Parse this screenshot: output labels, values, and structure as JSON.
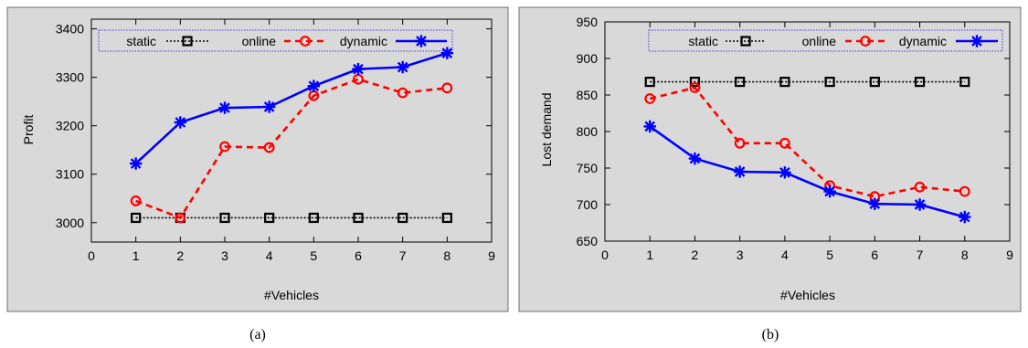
{
  "chart_data": [
    {
      "type": "line",
      "caption": "(a)",
      "xlabel": "#Vehicles",
      "ylabel": "Profit",
      "xlim": [
        0,
        9
      ],
      "ylim": [
        2960,
        3420
      ],
      "xticks": [
        0,
        1,
        2,
        3,
        4,
        5,
        6,
        7,
        8,
        9
      ],
      "yticks": [
        3000,
        3100,
        3200,
        3300,
        3400
      ],
      "grid": false,
      "legend_position": "top",
      "x": [
        1,
        2,
        3,
        4,
        5,
        6,
        7,
        8
      ],
      "series": [
        {
          "name": "static",
          "color": "#000000",
          "line": "dotted",
          "marker": "square",
          "values": [
            3010,
            3010,
            3010,
            3010,
            3010,
            3010,
            3010,
            3010
          ]
        },
        {
          "name": "online",
          "color": "#ff0000",
          "line": "dashed",
          "marker": "circle",
          "values": [
            3045,
            3010,
            3157,
            3155,
            3262,
            3296,
            3268,
            3278
          ]
        },
        {
          "name": "dynamic",
          "color": "#0000ff",
          "line": "solid",
          "marker": "star",
          "values": [
            3122,
            3207,
            3237,
            3239,
            3282,
            3317,
            3321,
            3350
          ]
        }
      ]
    },
    {
      "type": "line",
      "caption": "(b)",
      "xlabel": "#Vehicles",
      "ylabel": "Lost demand",
      "xlim": [
        0,
        9
      ],
      "ylim": [
        650,
        950
      ],
      "xticks": [
        0,
        1,
        2,
        3,
        4,
        5,
        6,
        7,
        8,
        9
      ],
      "yticks": [
        650,
        700,
        750,
        800,
        850,
        900,
        950
      ],
      "grid": false,
      "legend_position": "top",
      "x": [
        1,
        2,
        3,
        4,
        5,
        6,
        7,
        8
      ],
      "series": [
        {
          "name": "static",
          "color": "#000000",
          "line": "dotted",
          "marker": "square",
          "values": [
            868,
            868,
            868,
            868,
            868,
            868,
            868,
            868
          ]
        },
        {
          "name": "online",
          "color": "#ff0000",
          "line": "dashed",
          "marker": "circle",
          "values": [
            845,
            860,
            784,
            784,
            726,
            711,
            724,
            718
          ]
        },
        {
          "name": "dynamic",
          "color": "#0000ff",
          "line": "solid",
          "marker": "star",
          "values": [
            807,
            763,
            745,
            744,
            718,
            701,
            700,
            683
          ]
        }
      ]
    }
  ]
}
